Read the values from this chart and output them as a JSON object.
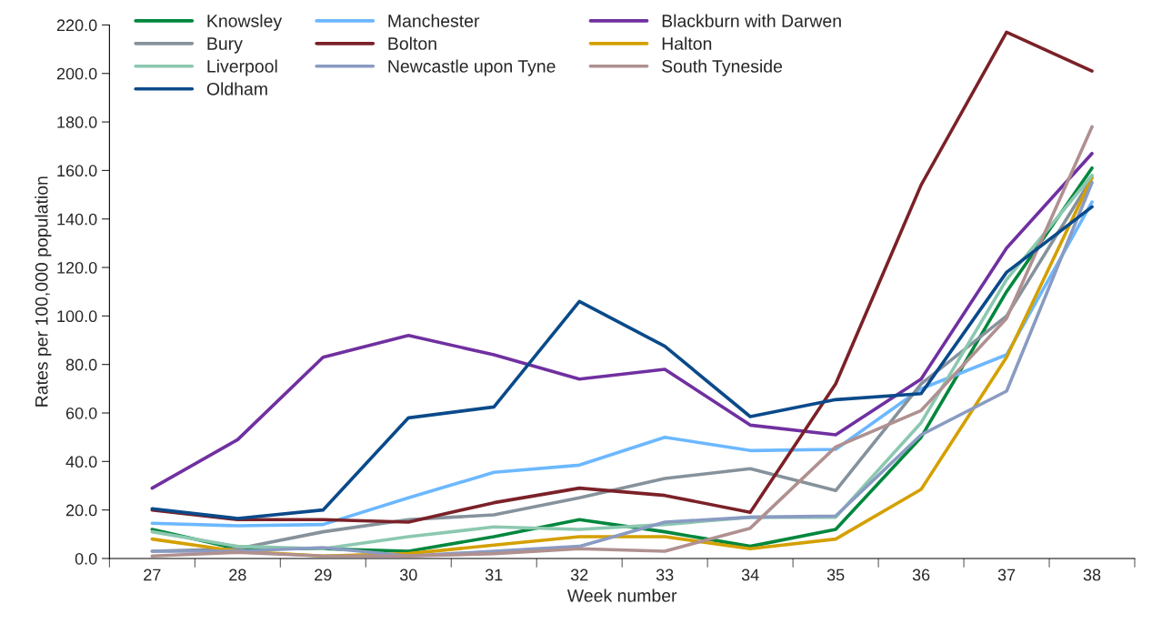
{
  "chart_data": {
    "type": "line",
    "xlabel": "Week number",
    "ylabel": "Rates per 100,000 population",
    "categories": [
      "27",
      "28",
      "29",
      "30",
      "31",
      "32",
      "33",
      "34",
      "35",
      "36",
      "37",
      "38"
    ],
    "ylim": [
      0,
      220
    ],
    "yticks": [
      {
        "value": 0,
        "label": "0.0"
      },
      {
        "value": 20,
        "label": "20.0"
      },
      {
        "value": 40,
        "label": "40.0"
      },
      {
        "value": 60,
        "label": "60.0"
      },
      {
        "value": 80,
        "label": "80.0"
      },
      {
        "value": 100,
        "label": "100.0"
      },
      {
        "value": 120,
        "label": "120.0"
      },
      {
        "value": 140,
        "label": "140.0"
      },
      {
        "value": 160,
        "label": "160.0"
      },
      {
        "value": 180,
        "label": "180.0"
      },
      {
        "value": 200,
        "label": "200.0"
      },
      {
        "value": 220,
        "label": "220.0"
      }
    ],
    "grid": false,
    "legend": "top",
    "marker": "none",
    "line_style": "solid",
    "series": [
      {
        "name": "Knowsley",
        "color": "#00873d",
        "values": [
          12,
          4,
          4,
          3,
          9,
          16,
          11,
          5,
          12,
          50,
          110,
          161
        ]
      },
      {
        "name": "Manchester",
        "color": "#6cb8ff",
        "values": [
          14.5,
          13.5,
          14,
          25,
          35.5,
          38.5,
          50,
          44.5,
          45,
          70,
          84,
          147
        ]
      },
      {
        "name": "Blackburn with Darwen",
        "color": "#7030a0",
        "values": [
          29,
          49,
          83,
          92,
          84,
          74,
          78,
          55,
          51,
          74,
          128,
          167
        ]
      },
      {
        "name": "Bury",
        "color": "#86929b",
        "values": [
          3,
          4,
          11,
          16,
          18,
          25,
          33,
          37,
          28,
          72,
          100,
          157
        ]
      },
      {
        "name": "Bolton",
        "color": "#7b2128",
        "values": [
          20,
          16,
          16,
          15,
          23,
          29,
          26,
          19,
          72,
          154,
          217,
          201
        ]
      },
      {
        "name": "Halton",
        "color": "#d4a000",
        "values": [
          8,
          3,
          1,
          2,
          5.5,
          9,
          9,
          4,
          8,
          28.5,
          83,
          157
        ]
      },
      {
        "name": "Liverpool",
        "color": "#8cc8b0",
        "values": [
          11,
          5,
          4,
          9,
          13,
          12,
          14,
          17,
          17,
          56,
          115,
          158
        ]
      },
      {
        "name": "Newcastle upon Tyne",
        "color": "#8a9bc2",
        "values": [
          3,
          3,
          4.5,
          1,
          3,
          5,
          15,
          17,
          17.5,
          51,
          69,
          155
        ]
      },
      {
        "name": "South Tyneside",
        "color": "#b09090",
        "values": [
          1,
          2.5,
          1,
          1,
          2,
          4,
          3,
          12.5,
          46,
          61,
          99,
          178
        ]
      },
      {
        "name": "Oldham",
        "color": "#0a4a8a",
        "values": [
          20.5,
          16.5,
          20,
          58,
          62.5,
          106,
          87.5,
          58.5,
          65.5,
          68,
          118,
          145
        ]
      }
    ]
  }
}
